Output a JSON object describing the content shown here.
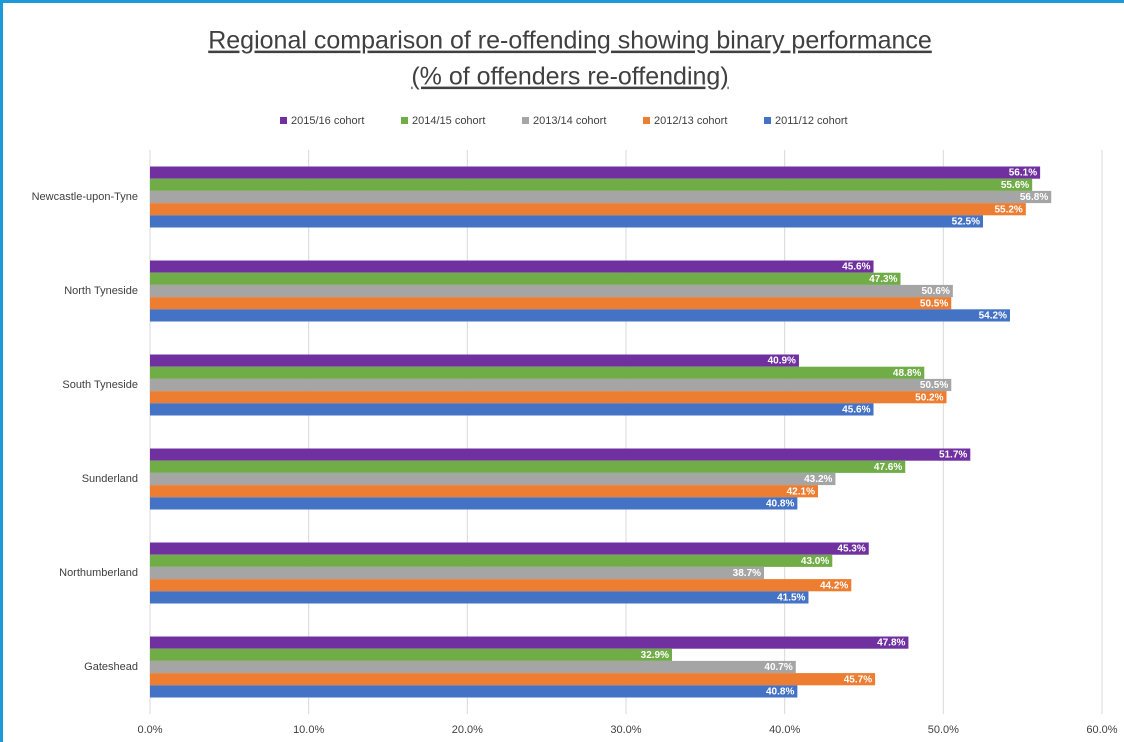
{
  "chart_data": {
    "type": "hbar",
    "title": [
      "Regional comparison of re-offending showing binary performance",
      "(% of offenders re-offending)"
    ],
    "categories": [
      "Newcastle-upon-Tyne",
      "North Tyneside",
      "South Tyneside",
      "Sunderland",
      "Northumberland",
      "Gateshead"
    ],
    "series": [
      {
        "name": "2015/16 cohort",
        "color": "#7030a0",
        "values": [
          56.1,
          45.6,
          40.9,
          51.7,
          45.3,
          47.8
        ],
        "value_labels": [
          "56.1%",
          "45.6%",
          "40.9%",
          "51.7%",
          "45.3%",
          "47.8%"
        ]
      },
      {
        "name": "2014/15 cohort",
        "color": "#70ad47",
        "values": [
          55.6,
          47.3,
          48.8,
          47.6,
          43.0,
          32.9
        ],
        "value_labels": [
          "55.6%",
          "47.3%",
          "48.8%",
          "47.6%",
          "43.0%",
          "32.9%"
        ]
      },
      {
        "name": "2013/14 cohort",
        "color": "#a5a5a5",
        "values": [
          56.8,
          50.6,
          50.5,
          43.2,
          38.7,
          40.7
        ],
        "value_labels": [
          "56.8%",
          "50.6%",
          "50.5%",
          "43.2%",
          "38.7%",
          "40.7%"
        ]
      },
      {
        "name": "2012/13 cohort",
        "color": "#ed7d31",
        "values": [
          55.2,
          50.5,
          50.2,
          42.1,
          44.2,
          45.7
        ],
        "value_labels": [
          "55.2%",
          "50.5%",
          "50.2%",
          "42.1%",
          "44.2%",
          "45.7%"
        ]
      },
      {
        "name": "2011/12 cohort",
        "color": "#4472c4",
        "values": [
          52.5,
          54.2,
          45.6,
          40.8,
          41.5,
          40.8
        ],
        "value_labels": [
          "52.5%",
          "54.2%",
          "45.6%",
          "40.8%",
          "41.5%",
          "40.8%"
        ]
      }
    ],
    "xlim": [
      0,
      60
    ],
    "xticks": [
      {
        "value": 0,
        "label": "0.0%"
      },
      {
        "value": 10,
        "label": "10.0%"
      },
      {
        "value": 20,
        "label": "20.0%"
      },
      {
        "value": 30,
        "label": "30.0%"
      },
      {
        "value": 40,
        "label": "40.0%"
      },
      {
        "value": 50,
        "label": "50.0%"
      },
      {
        "value": 60,
        "label": "60.0%"
      }
    ],
    "grid": true,
    "legend": "top"
  }
}
